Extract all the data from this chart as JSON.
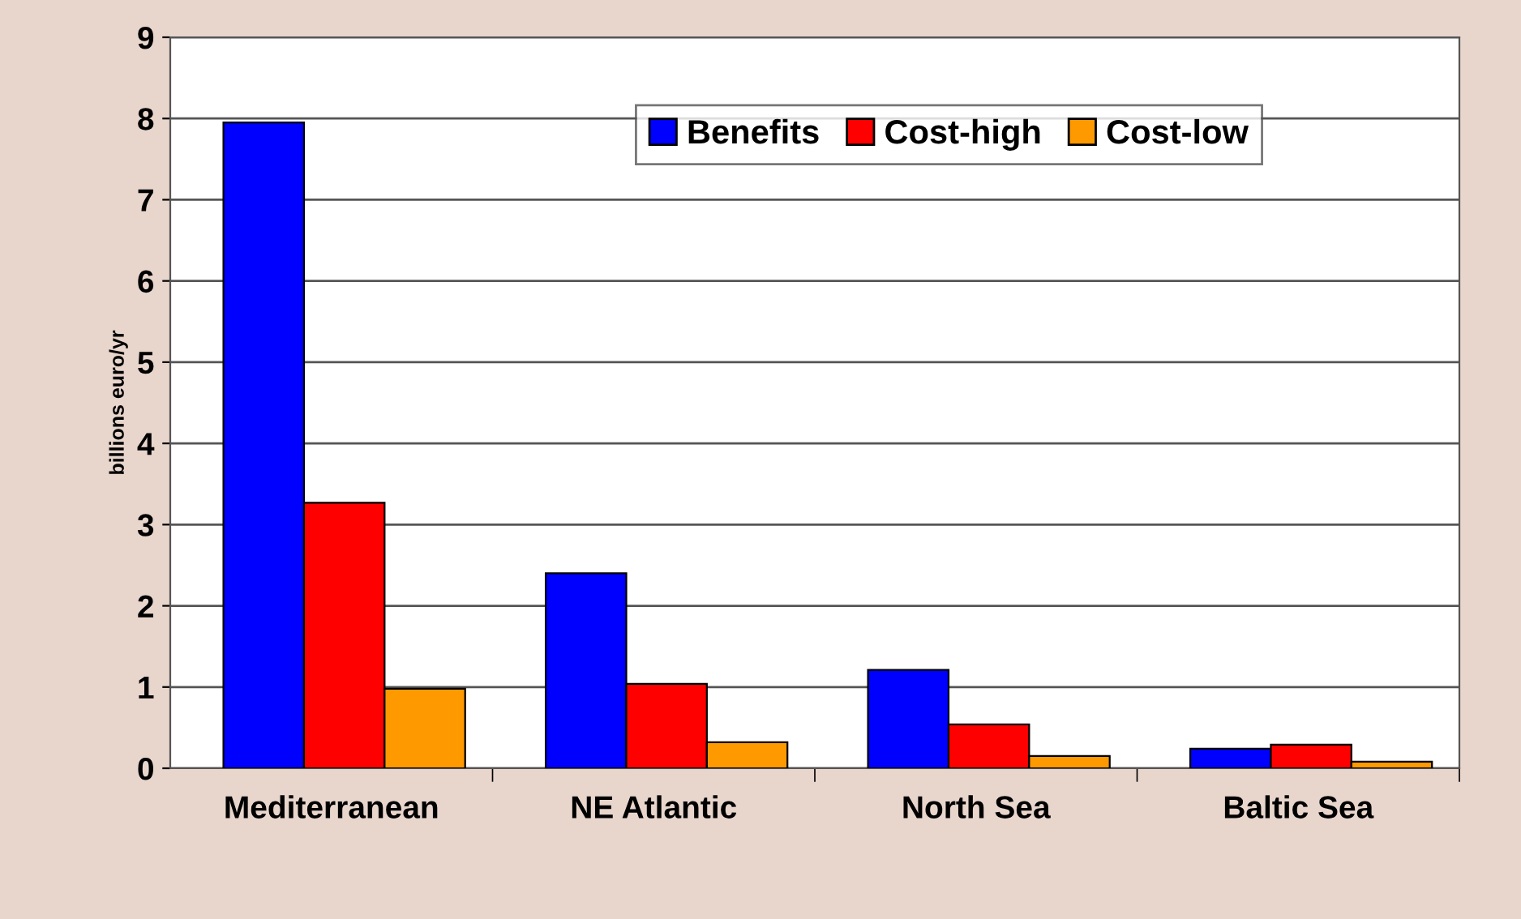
{
  "chart_data": {
    "type": "bar",
    "ylabel": "billions euro/yr",
    "categories": [
      "Mediterranean",
      "NE Atlantic",
      "North Sea",
      "Baltic Sea"
    ],
    "series": [
      {
        "name": "Benefits",
        "color": "#0000ff",
        "values": [
          7.95,
          2.4,
          1.21,
          0.24
        ]
      },
      {
        "name": "Cost-high",
        "color": "#ff0000",
        "values": [
          3.27,
          1.04,
          0.54,
          0.29
        ]
      },
      {
        "name": "Cost-low",
        "color": "#ff9900",
        "values": [
          0.98,
          0.32,
          0.15,
          0.08
        ]
      }
    ],
    "ylim": [
      0,
      9
    ],
    "yticks": [
      0,
      1,
      2,
      3,
      4,
      5,
      6,
      7,
      8,
      9
    ],
    "grid": "y",
    "legend": "top right"
  }
}
